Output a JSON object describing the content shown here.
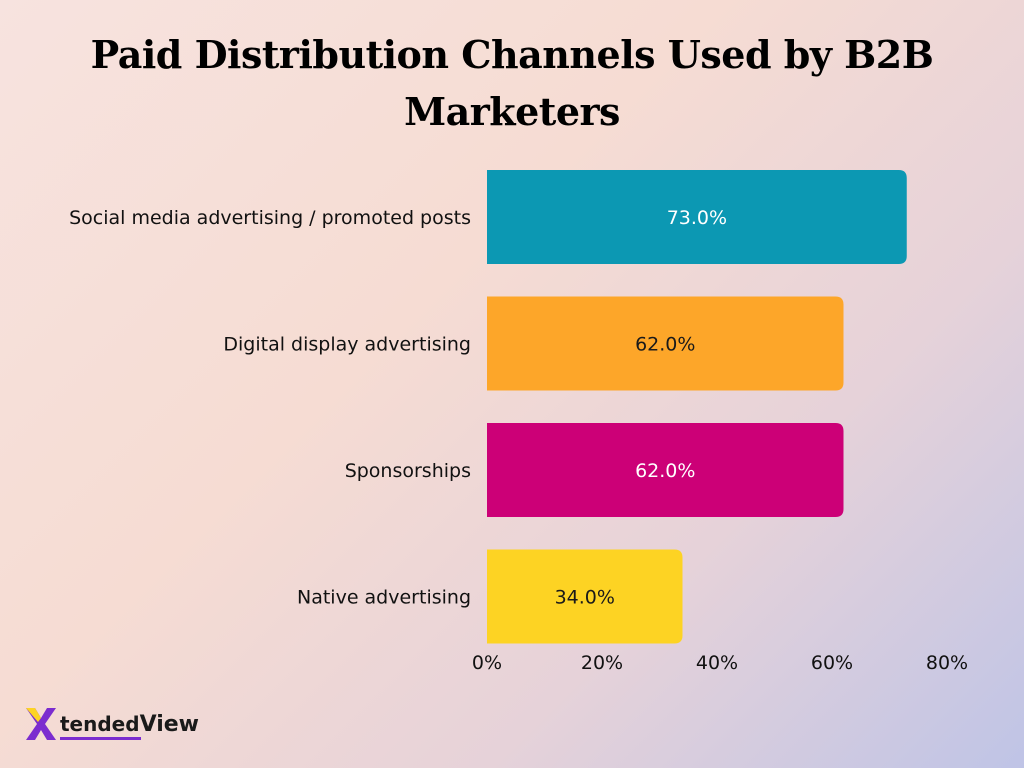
{
  "title": "Paid Distribution Channels Used by B2B Marketers",
  "brand": {
    "part1": "tended",
    "part2": "View",
    "mark": "X"
  },
  "chart_data": {
    "type": "bar",
    "orientation": "horizontal",
    "title": "Paid Distribution Channels Used by B2B Marketers",
    "categories": [
      "Social media advertising / promoted posts",
      "Digital display advertising",
      "Sponsorships",
      "Native advertising"
    ],
    "values": [
      73.0,
      62.0,
      62.0,
      34.0
    ],
    "value_labels": [
      "73.0%",
      "62.0%",
      "62.0%",
      "34.0%"
    ],
    "colors": [
      "#0c98b3",
      "#fda629",
      "#cc0077",
      "#fdd323"
    ],
    "label_colors": [
      "#ffffff",
      "#1a1a1a",
      "#ffffff",
      "#1a1a1a"
    ],
    "x_ticks": [
      0,
      20,
      40,
      60,
      80
    ],
    "x_tick_labels": [
      "0%",
      "20%",
      "40%",
      "60%",
      "80%"
    ],
    "xlim": [
      0,
      80
    ],
    "grid": false,
    "legend": "none",
    "xlabel": "",
    "ylabel": ""
  }
}
